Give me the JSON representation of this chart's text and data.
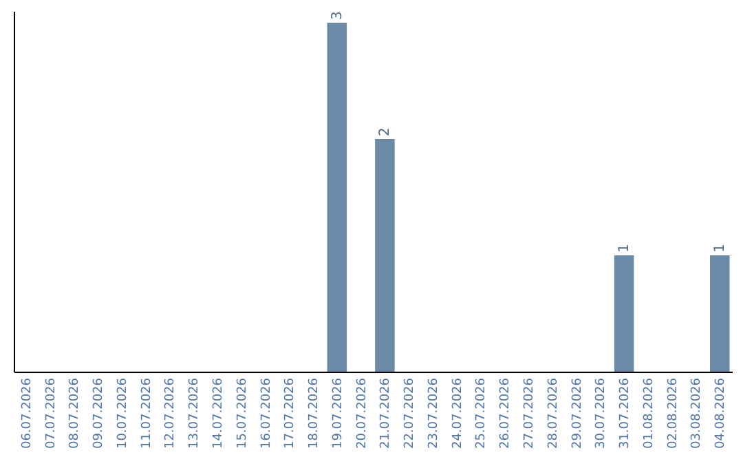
{
  "chart_data": {
    "type": "bar",
    "categories": [
      "06.07.2026",
      "07.07.2026",
      "08.07.2026",
      "09.07.2026",
      "10.07.2026",
      "11.07.2026",
      "12.07.2026",
      "13.07.2026",
      "14.07.2026",
      "15.07.2026",
      "16.07.2026",
      "17.07.2026",
      "18.07.2026",
      "19.07.2026",
      "20.07.2026",
      "21.07.2026",
      "22.07.2026",
      "23.07.2026",
      "24.07.2026",
      "25.07.2026",
      "26.07.2026",
      "27.07.2026",
      "28.07.2026",
      "29.07.2026",
      "30.07.2026",
      "31.07.2026",
      "01.08.2026",
      "02.08.2026",
      "03.08.2026",
      "04.08.2026"
    ],
    "values": [
      null,
      null,
      null,
      null,
      null,
      null,
      null,
      null,
      null,
      null,
      null,
      null,
      null,
      3,
      null,
      2,
      null,
      null,
      null,
      null,
      null,
      null,
      null,
      null,
      null,
      1,
      null,
      null,
      null,
      1
    ],
    "value_labels": [
      null,
      null,
      null,
      null,
      null,
      null,
      null,
      null,
      null,
      null,
      null,
      null,
      null,
      "3",
      null,
      "2",
      null,
      null,
      null,
      null,
      null,
      null,
      null,
      null,
      null,
      "1",
      null,
      null,
      null,
      "1"
    ],
    "color": "#6a8aa8",
    "ylim": [
      0,
      3.1
    ],
    "tick_labels": "x",
    "grid": false
  }
}
